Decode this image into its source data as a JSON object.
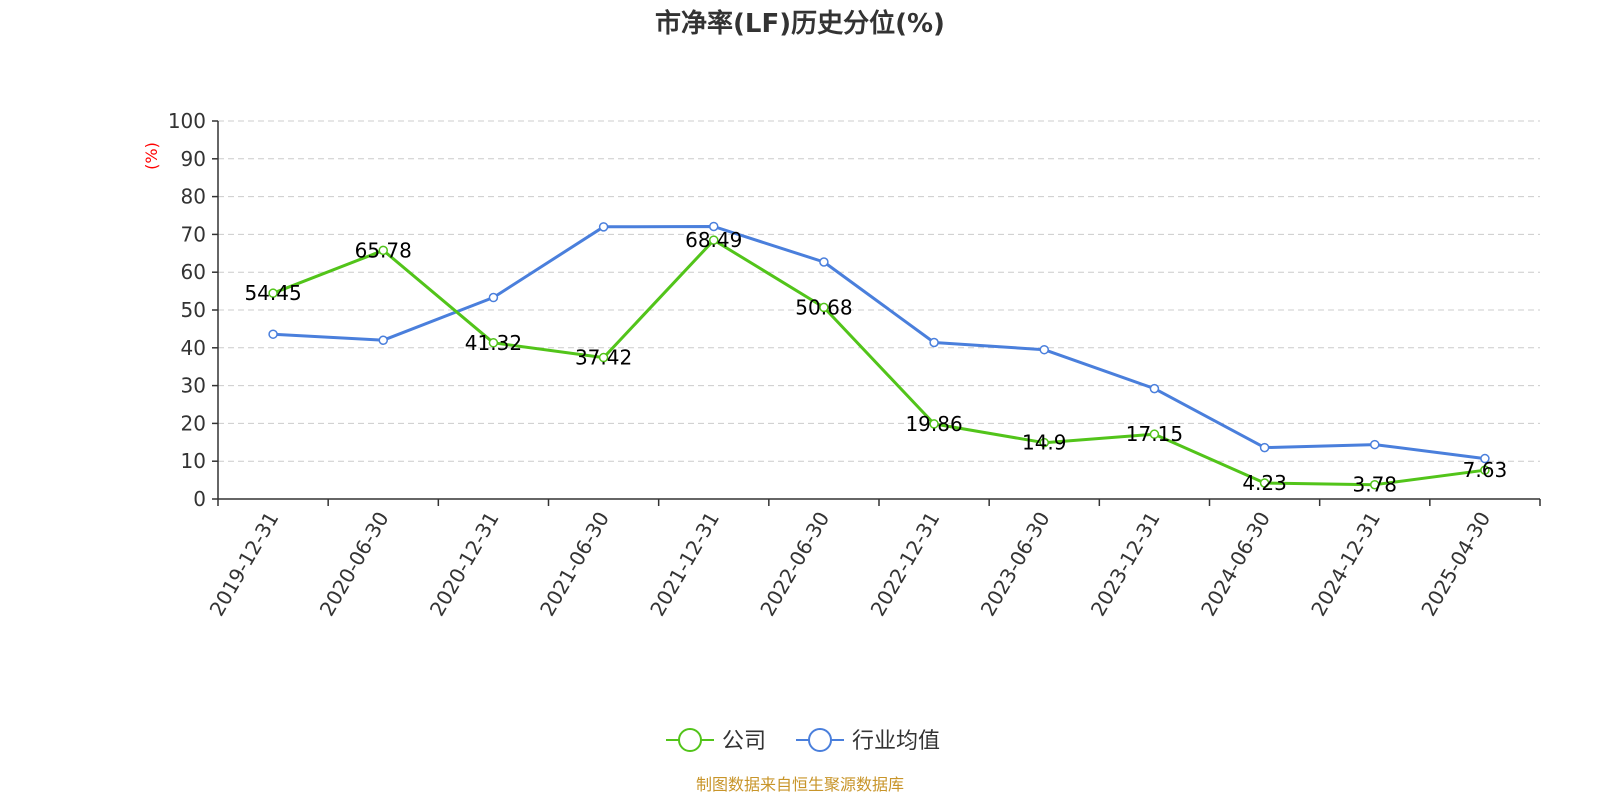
{
  "chart_data": {
    "type": "line",
    "title": "市净率(LF)历史分位(%)",
    "ylabel": "(%)",
    "ylim": [
      0,
      100
    ],
    "yticks": [
      0,
      10,
      20,
      30,
      40,
      50,
      60,
      70,
      80,
      90,
      100
    ],
    "grid": true,
    "legend_position": "bottom-center",
    "categories": [
      "2019-12-31",
      "2020-06-30",
      "2020-12-31",
      "2021-06-30",
      "2021-12-31",
      "2022-06-30",
      "2022-12-31",
      "2023-06-30",
      "2023-12-31",
      "2024-06-30",
      "2024-12-31",
      "2025-04-30"
    ],
    "series": [
      {
        "name": "公司",
        "color": "#52c41a",
        "values": [
          54.45,
          65.78,
          41.32,
          37.42,
          68.49,
          50.68,
          19.86,
          14.9,
          17.15,
          4.23,
          3.78,
          7.63
        ],
        "labels": [
          "54.45",
          "65.78",
          "41.32",
          "37.42",
          "68.49",
          "50.68",
          "19.86",
          "14.9",
          "17.15",
          "4.23",
          "3.78",
          "7.63"
        ]
      },
      {
        "name": "行业均值",
        "color": "#4a7fdc",
        "values": [
          43.6,
          42.0,
          53.3,
          72.0,
          72.1,
          62.7,
          41.4,
          39.5,
          29.2,
          13.6,
          14.4,
          10.7
        ]
      }
    ]
  },
  "source": "制图数据来自恒生聚源数据库"
}
